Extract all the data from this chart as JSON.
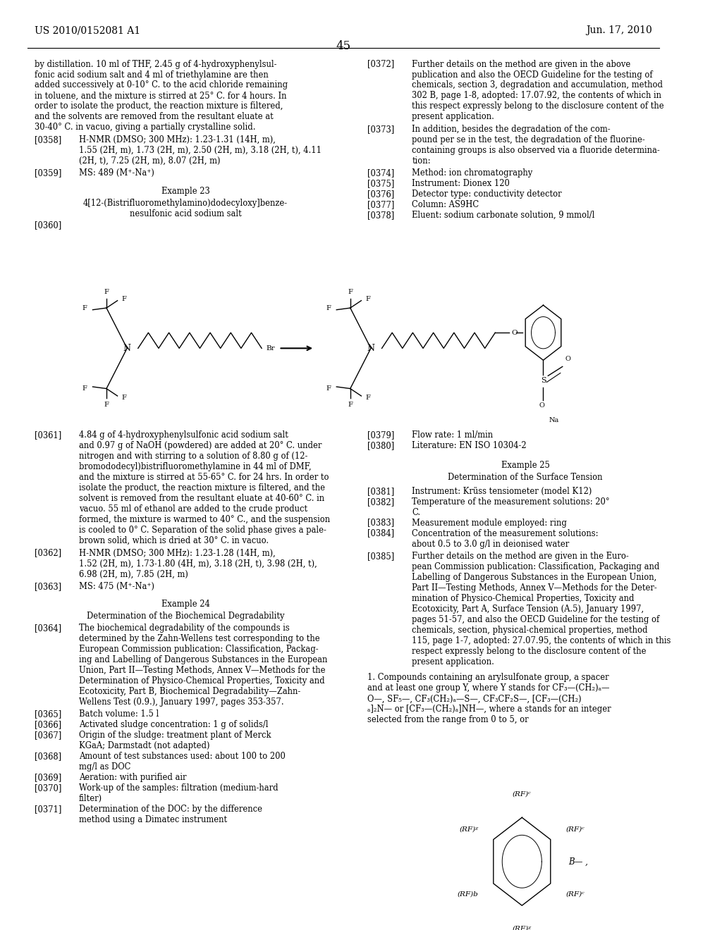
{
  "page_number": "45",
  "header_left": "US 2010/0152081 A1",
  "header_right": "Jun. 17, 2010",
  "background_color": "#ffffff",
  "text_color": "#000000",
  "body_font_size": 8.3,
  "header_font_size": 10.0,
  "page_num_font_size": 12.0
}
